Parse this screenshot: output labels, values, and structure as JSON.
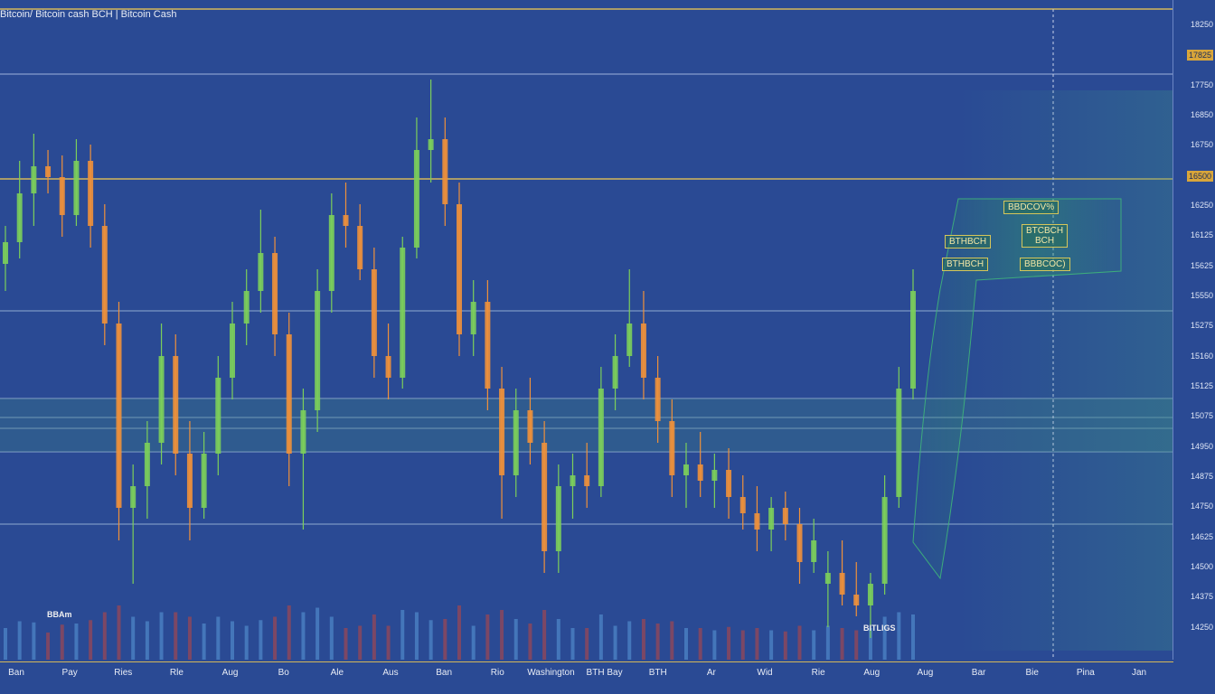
{
  "chart_data": {
    "type": "candlestick",
    "title": "Bitcoin/ Bitcoin cash BCH | Bitcoin Cash",
    "price_ticks": [
      "18250",
      "17825",
      "17750",
      "16850",
      "16750",
      "16500",
      "16250",
      "16125",
      "15625",
      "15550",
      "15275",
      "15160",
      "15125",
      "15075",
      "14950",
      "14875",
      "14750",
      "14625",
      "14500",
      "14375",
      "14250"
    ],
    "highlighted_ticks": [
      "17825",
      "16500"
    ],
    "time_ticks": [
      "Ban",
      "Pay",
      "Ries",
      "Rle",
      "Aug",
      "Bo",
      "Ale",
      "Aus",
      "Ban",
      "Rio",
      "Washington",
      "BTH Bay",
      "BTH",
      "Ar",
      "Wid",
      "Rie",
      "Aug",
      "Aug",
      "Bar",
      "Bie",
      "Pina",
      "Jan"
    ],
    "annotations": {
      "box_1": "BBDCOV%",
      "box_2": "BTCBCH",
      "box_2b": "BCH",
      "box_3": "BTHBCH",
      "box_4": "BTHBCH",
      "box_5": "BBBCOC)",
      "volume_label_left": "BBAm",
      "volume_label_right": "BITLIGS"
    },
    "candles": [
      {
        "o": 16150,
        "h": 16500,
        "l": 15900,
        "c": 16350
      },
      {
        "o": 16350,
        "h": 17100,
        "l": 16200,
        "c": 16800
      },
      {
        "o": 16800,
        "h": 17350,
        "l": 16500,
        "c": 17050
      },
      {
        "o": 17050,
        "h": 17200,
        "l": 16800,
        "c": 16950
      },
      {
        "o": 16950,
        "h": 17150,
        "l": 16400,
        "c": 16600
      },
      {
        "o": 16600,
        "h": 17300,
        "l": 16500,
        "c": 17100
      },
      {
        "o": 17100,
        "h": 17250,
        "l": 16300,
        "c": 16500
      },
      {
        "o": 16500,
        "h": 16700,
        "l": 15400,
        "c": 15600
      },
      {
        "o": 15600,
        "h": 15800,
        "l": 13600,
        "c": 13900
      },
      {
        "o": 13900,
        "h": 14300,
        "l": 13200,
        "c": 14100
      },
      {
        "o": 14100,
        "h": 14700,
        "l": 13800,
        "c": 14500
      },
      {
        "o": 14500,
        "h": 15600,
        "l": 14300,
        "c": 15300
      },
      {
        "o": 15300,
        "h": 15500,
        "l": 14200,
        "c": 14400
      },
      {
        "o": 14400,
        "h": 14700,
        "l": 13600,
        "c": 13900
      },
      {
        "o": 13900,
        "h": 14600,
        "l": 13800,
        "c": 14400
      },
      {
        "o": 14400,
        "h": 15300,
        "l": 14200,
        "c": 15100
      },
      {
        "o": 15100,
        "h": 15800,
        "l": 14900,
        "c": 15600
      },
      {
        "o": 15600,
        "h": 16100,
        "l": 15400,
        "c": 15900
      },
      {
        "o": 15900,
        "h": 16650,
        "l": 15700,
        "c": 16250
      },
      {
        "o": 16250,
        "h": 16400,
        "l": 15300,
        "c": 15500
      },
      {
        "o": 15500,
        "h": 15700,
        "l": 14100,
        "c": 14400
      },
      {
        "o": 14400,
        "h": 15000,
        "l": 13700,
        "c": 14800
      },
      {
        "o": 14800,
        "h": 16100,
        "l": 14600,
        "c": 15900
      },
      {
        "o": 15900,
        "h": 16800,
        "l": 15700,
        "c": 16600
      },
      {
        "o": 16600,
        "h": 16900,
        "l": 16300,
        "c": 16500
      },
      {
        "o": 16500,
        "h": 16700,
        "l": 16000,
        "c": 16100
      },
      {
        "o": 16100,
        "h": 16300,
        "l": 15100,
        "c": 15300
      },
      {
        "o": 15300,
        "h": 15600,
        "l": 14900,
        "c": 15100
      },
      {
        "o": 15100,
        "h": 16400,
        "l": 15000,
        "c": 16300
      },
      {
        "o": 16300,
        "h": 17500,
        "l": 16200,
        "c": 17200
      },
      {
        "o": 17200,
        "h": 17850,
        "l": 16900,
        "c": 17300
      },
      {
        "o": 17300,
        "h": 17500,
        "l": 16500,
        "c": 16700
      },
      {
        "o": 16700,
        "h": 16900,
        "l": 15300,
        "c": 15500
      },
      {
        "o": 15500,
        "h": 16000,
        "l": 15300,
        "c": 15800
      },
      {
        "o": 15800,
        "h": 16000,
        "l": 14800,
        "c": 15000
      },
      {
        "o": 15000,
        "h": 15200,
        "l": 13800,
        "c": 14200
      },
      {
        "o": 14200,
        "h": 15000,
        "l": 14000,
        "c": 14800
      },
      {
        "o": 14800,
        "h": 15100,
        "l": 14300,
        "c": 14500
      },
      {
        "o": 14500,
        "h": 14700,
        "l": 13300,
        "c": 13500
      },
      {
        "o": 13500,
        "h": 14300,
        "l": 13300,
        "c": 14100
      },
      {
        "o": 14100,
        "h": 14400,
        "l": 13800,
        "c": 14200
      },
      {
        "o": 14200,
        "h": 14500,
        "l": 13900,
        "c": 14100
      },
      {
        "o": 14100,
        "h": 15200,
        "l": 14000,
        "c": 15000
      },
      {
        "o": 15000,
        "h": 15500,
        "l": 14800,
        "c": 15300
      },
      {
        "o": 15300,
        "h": 16100,
        "l": 15200,
        "c": 15600
      },
      {
        "o": 15600,
        "h": 15900,
        "l": 14900,
        "c": 15100
      },
      {
        "o": 15100,
        "h": 15300,
        "l": 14500,
        "c": 14700
      },
      {
        "o": 14700,
        "h": 14900,
        "l": 14000,
        "c": 14200
      },
      {
        "o": 14200,
        "h": 14500,
        "l": 13900,
        "c": 14300
      },
      {
        "o": 14300,
        "h": 14600,
        "l": 14000,
        "c": 14150
      },
      {
        "o": 14150,
        "h": 14400,
        "l": 13900,
        "c": 14250
      },
      {
        "o": 14250,
        "h": 14450,
        "l": 13800,
        "c": 14000
      },
      {
        "o": 14000,
        "h": 14200,
        "l": 13700,
        "c": 13850
      },
      {
        "o": 13850,
        "h": 14100,
        "l": 13500,
        "c": 13700
      },
      {
        "o": 13700,
        "h": 14000,
        "l": 13500,
        "c": 13900
      },
      {
        "o": 13900,
        "h": 14050,
        "l": 13600,
        "c": 13750
      },
      {
        "o": 13750,
        "h": 13900,
        "l": 13200,
        "c": 13400
      },
      {
        "o": 13400,
        "h": 13800,
        "l": 13300,
        "c": 13600
      },
      {
        "o": 13200,
        "h": 13500,
        "l": 12800,
        "c": 13300
      },
      {
        "o": 13300,
        "h": 13600,
        "l": 13000,
        "c": 13100
      },
      {
        "o": 13100,
        "h": 13400,
        "l": 12900,
        "c": 13000
      },
      {
        "o": 13000,
        "h": 13300,
        "l": 12700,
        "c": 13200
      },
      {
        "o": 13200,
        "h": 14200,
        "l": 13100,
        "c": 14000
      },
      {
        "o": 14000,
        "h": 15200,
        "l": 13900,
        "c": 15000
      },
      {
        "o": 15000,
        "h": 16100,
        "l": 14900,
        "c": 15900
      }
    ],
    "ylim": [
      12500,
      18500
    ],
    "grid": true
  }
}
